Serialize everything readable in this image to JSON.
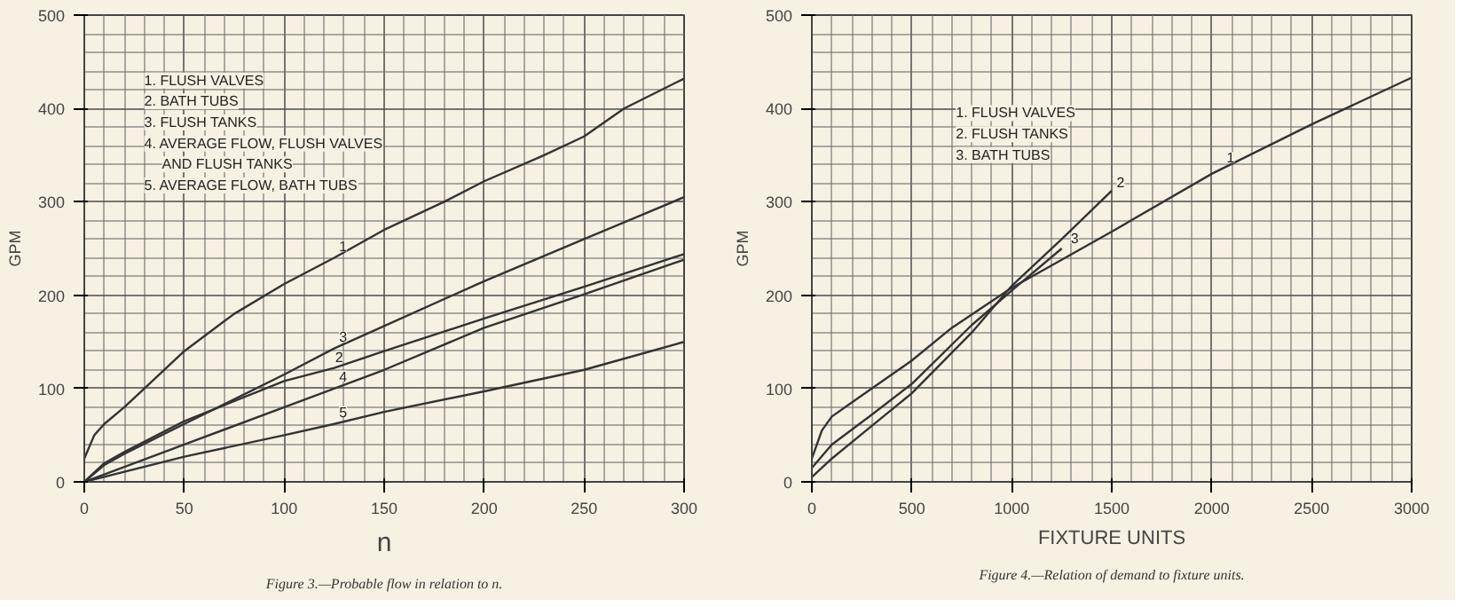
{
  "chart_data": [
    {
      "type": "line",
      "title": "Figure 3.—Probable flow in relation to n.",
      "xlabel": "n",
      "ylabel": "GPM",
      "xlim": [
        0,
        300
      ],
      "ylim": [
        0,
        500
      ],
      "xticks": [
        0,
        50,
        100,
        150,
        200,
        250,
        300
      ],
      "yticks": [
        0,
        100,
        200,
        300,
        400,
        500
      ],
      "grid": true,
      "series": [
        {
          "color": "#333333",
          "x": [
            0,
            5,
            10,
            20,
            30,
            50,
            75,
            100,
            125,
            150,
            180,
            200,
            230,
            250,
            270,
            300
          ],
          "values": [
            25,
            50,
            62,
            80,
            100,
            140,
            180,
            212,
            240,
            270,
            300,
            322,
            350,
            370,
            400,
            432
          ]
        },
        {
          "color": "#333333",
          "x": [
            0,
            10,
            20,
            50,
            100,
            125,
            150,
            200,
            250,
            300
          ],
          "values": [
            0,
            20,
            32,
            65,
            108,
            122,
            140,
            175,
            209,
            244
          ]
        },
        {
          "color": "#333333",
          "x": [
            0,
            10,
            20,
            50,
            100,
            125,
            150,
            200,
            250,
            300
          ],
          "values": [
            0,
            18,
            30,
            62,
            115,
            143,
            167,
            215,
            260,
            305
          ]
        },
        {
          "color": "#333333",
          "x": [
            0,
            50,
            100,
            125,
            150,
            200,
            250,
            300
          ],
          "values": [
            0,
            40,
            80,
            100,
            120,
            165,
            201,
            238
          ]
        },
        {
          "color": "#333333",
          "x": [
            0,
            50,
            100,
            125,
            150,
            200,
            250,
            300
          ],
          "values": [
            0,
            27,
            50,
            62,
            75,
            97,
            120,
            150
          ]
        }
      ],
      "annotations": [
        "1. FLUSH VALVES",
        "2. BATH TUBS",
        "3. FLUSH TANKS",
        "4. AVERAGE FLOW, FLUSH VALVES",
        "AND FLUSH TANKS",
        "5. AVERAGE FLOW, BATH TUBS",
        {
          "text": "1",
          "x": 125,
          "y": 243
        },
        {
          "text": "3",
          "x": 125,
          "y": 146
        },
        {
          "text": "2",
          "x": 123,
          "y": 125
        },
        {
          "text": "4",
          "x": 125,
          "y": 104
        },
        {
          "text": "5",
          "x": 125,
          "y": 66
        }
      ]
    },
    {
      "type": "line",
      "title": "Figure 4.—Relation of demand to fixture units.",
      "xlabel": "FIXTURE UNITS",
      "ylabel": "GPM",
      "xlim": [
        0,
        3000
      ],
      "ylim": [
        0,
        500
      ],
      "xticks": [
        0,
        500,
        1000,
        1500,
        2000,
        2500,
        3000
      ],
      "yticks": [
        0,
        100,
        200,
        300,
        400,
        500
      ],
      "grid": true,
      "series": [
        {
          "color": "#333333",
          "x": [
            0,
            50,
            100,
            200,
            300,
            500,
            700,
            1000,
            1200,
            1500,
            2000,
            2500,
            3000
          ],
          "values": [
            25,
            55,
            70,
            85,
            100,
            130,
            165,
            208,
            232,
            268,
            330,
            383,
            433
          ]
        },
        {
          "color": "#333333",
          "x": [
            0,
            100,
            300,
            500,
            800,
            1000,
            1250,
            1500
          ],
          "values": [
            5,
            25,
            60,
            95,
            160,
            210,
            260,
            312
          ]
        },
        {
          "color": "#333333",
          "x": [
            0,
            100,
            300,
            500,
            800,
            1000,
            1250
          ],
          "values": [
            15,
            40,
            72,
            105,
            168,
            205,
            250
          ]
        }
      ],
      "annotations": [
        "1. FLUSH VALVES",
        "2. FLUSH TANKS",
        "3. BATH TUBS",
        {
          "text": "1",
          "x": 2050,
          "y": 338
        },
        {
          "text": "2",
          "x": 1500,
          "y": 312
        },
        {
          "text": "3",
          "x": 1270,
          "y": 252
        }
      ]
    }
  ]
}
